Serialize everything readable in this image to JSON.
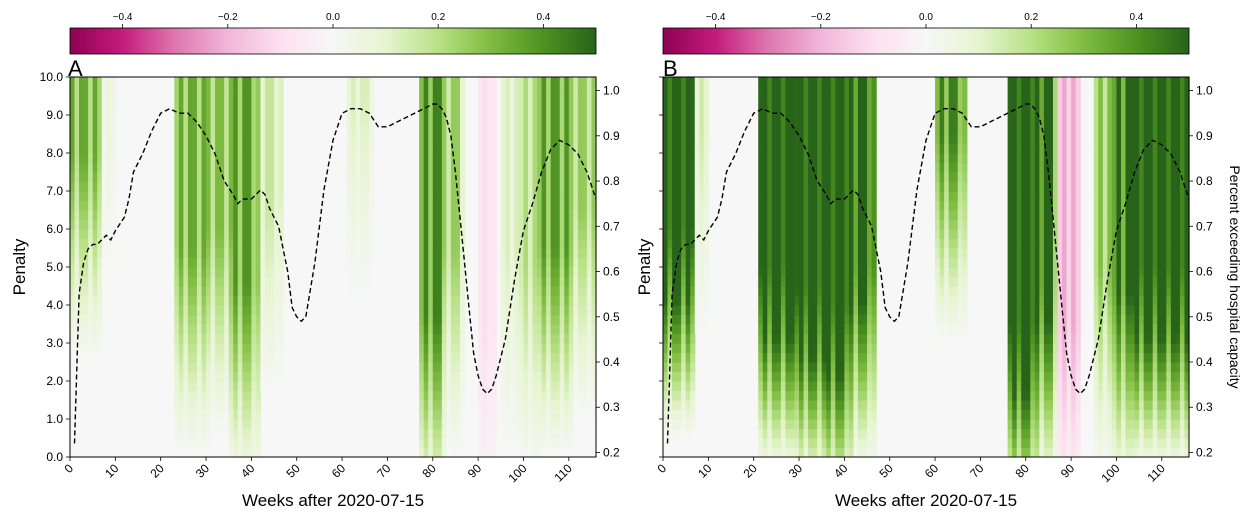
{
  "colormap": {
    "ticks": [
      -0.4,
      -0.2,
      0.0,
      0.2,
      0.4
    ],
    "tick_labels": [
      "−0.4",
      "−0.2",
      "0.0",
      "0.2",
      "0.4"
    ],
    "range": [
      -0.5,
      0.5
    ],
    "stops": [
      "#8e0152",
      "#c51b7d",
      "#de77ae",
      "#f1b6da",
      "#fde0ef",
      "#f7f7f7",
      "#e6f5d0",
      "#b8e186",
      "#7fbc41",
      "#4d9221",
      "#276419"
    ]
  },
  "chart_data": [
    {
      "panel_label": "A",
      "type": "heatmap",
      "xlabel": "Weeks after 2020-07-15",
      "ylabel": "Penalty",
      "ylabel_right": "",
      "xlim": [
        0,
        116
      ],
      "ylim": [
        0,
        10
      ],
      "ylim_right": [
        0.19,
        1.03
      ],
      "x_ticks": [
        0,
        10,
        20,
        30,
        40,
        50,
        60,
        70,
        80,
        90,
        100,
        110
      ],
      "y_ticks": [
        "0.0",
        "1.0",
        "2.0",
        "3.0",
        "4.0",
        "5.0",
        "6.0",
        "7.0",
        "8.0",
        "9.0",
        "10.0"
      ],
      "y_right_ticks": [
        "0.2",
        "0.3",
        "0.4",
        "0.5",
        "0.6",
        "0.7",
        "0.8",
        "0.9",
        "1.0"
      ],
      "intensity_scale": 1.0,
      "heatmap_bands": [
        {
          "x": [
            0,
            6
          ],
          "peak": 0.4,
          "floor_penalty": 5.5
        },
        {
          "x": [
            6,
            9
          ],
          "peak": 0.08,
          "floor_penalty": 7.0
        },
        {
          "x": [
            24,
            30
          ],
          "peak": 0.4,
          "floor_penalty": 3.0
        },
        {
          "x": [
            30,
            36
          ],
          "peak": 0.35,
          "floor_penalty": 3.5
        },
        {
          "x": [
            36,
            41
          ],
          "peak": 0.45,
          "floor_penalty": 2.0
        },
        {
          "x": [
            41,
            46
          ],
          "peak": 0.2,
          "floor_penalty": 4.5
        },
        {
          "x": [
            62,
            66
          ],
          "peak": 0.15,
          "floor_penalty": 7.0
        },
        {
          "x": [
            78,
            82
          ],
          "peak": 0.5,
          "floor_penalty": 1.2
        },
        {
          "x": [
            82,
            86
          ],
          "peak": 0.3,
          "floor_penalty": 3.0
        },
        {
          "x": [
            91,
            93
          ],
          "peak": -0.12,
          "floor_penalty": 1.0
        },
        {
          "x": [
            96,
            100
          ],
          "peak": 0.15,
          "floor_penalty": 3.0
        },
        {
          "x": [
            100,
            104
          ],
          "peak": 0.25,
          "floor_penalty": 2.5
        },
        {
          "x": [
            104,
            110
          ],
          "peak": 0.45,
          "floor_penalty": 3.0
        },
        {
          "x": [
            110,
            116
          ],
          "peak": 0.3,
          "floor_penalty": 4.0
        }
      ],
      "line": {
        "x": [
          1,
          2,
          3,
          4,
          5,
          6,
          7,
          8,
          9,
          10,
          12,
          13,
          14,
          16,
          18,
          20,
          22,
          24,
          26,
          28,
          30,
          31,
          32,
          34,
          36,
          37,
          38,
          40,
          42,
          43,
          44,
          46,
          48,
          49,
          50,
          51,
          52,
          54,
          56,
          58,
          60,
          62,
          64,
          66,
          68,
          70,
          72,
          74,
          76,
          78,
          80,
          81,
          82,
          83,
          84,
          85,
          86,
          87,
          88,
          89,
          90,
          91,
          92,
          93,
          94,
          96,
          98,
          100,
          102,
          104,
          106,
          108,
          110,
          112,
          114,
          116
        ],
        "y": [
          0.22,
          0.55,
          0.62,
          0.65,
          0.66,
          0.66,
          0.67,
          0.68,
          0.67,
          0.69,
          0.72,
          0.76,
          0.82,
          0.86,
          0.91,
          0.95,
          0.96,
          0.95,
          0.95,
          0.93,
          0.9,
          0.88,
          0.86,
          0.8,
          0.77,
          0.75,
          0.76,
          0.76,
          0.78,
          0.77,
          0.74,
          0.7,
          0.6,
          0.52,
          0.5,
          0.49,
          0.5,
          0.62,
          0.78,
          0.89,
          0.95,
          0.96,
          0.96,
          0.95,
          0.92,
          0.92,
          0.93,
          0.94,
          0.95,
          0.96,
          0.97,
          0.97,
          0.96,
          0.94,
          0.9,
          0.82,
          0.72,
          0.62,
          0.52,
          0.42,
          0.37,
          0.34,
          0.33,
          0.34,
          0.37,
          0.45,
          0.58,
          0.69,
          0.75,
          0.82,
          0.87,
          0.89,
          0.88,
          0.86,
          0.82,
          0.76
        ]
      }
    },
    {
      "panel_label": "B",
      "type": "heatmap",
      "xlabel": "Weeks after 2020-07-15",
      "ylabel": "Penalty",
      "ylabel_right": "Percent exceeding hospital capacity",
      "xlim": [
        0,
        116
      ],
      "ylim": [
        0,
        10
      ],
      "ylim_right": [
        0.19,
        1.03
      ],
      "x_ticks": [
        0,
        10,
        20,
        30,
        40,
        50,
        60,
        70,
        80,
        90,
        100,
        110
      ],
      "y_ticks": [],
      "y_right_ticks": [
        "0.2",
        "0.3",
        "0.4",
        "0.5",
        "0.6",
        "0.7",
        "0.8",
        "0.9",
        "1.0"
      ],
      "intensity_scale": 1.7,
      "heatmap_bands": [
        {
          "x": [
            0,
            6
          ],
          "peak": 0.5,
          "floor_penalty": 3.5
        },
        {
          "x": [
            6,
            9
          ],
          "peak": 0.1,
          "floor_penalty": 6.0
        },
        {
          "x": [
            22,
            30
          ],
          "peak": 0.5,
          "floor_penalty": 2.5
        },
        {
          "x": [
            30,
            36
          ],
          "peak": 0.5,
          "floor_penalty": 2.0
        },
        {
          "x": [
            36,
            41
          ],
          "peak": 0.5,
          "floor_penalty": 1.5
        },
        {
          "x": [
            41,
            46
          ],
          "peak": 0.4,
          "floor_penalty": 2.5
        },
        {
          "x": [
            61,
            66
          ],
          "peak": 0.3,
          "floor_penalty": 6.0
        },
        {
          "x": [
            77,
            82
          ],
          "peak": 0.5,
          "floor_penalty": 1.0
        },
        {
          "x": [
            82,
            86
          ],
          "peak": 0.4,
          "floor_penalty": 2.0
        },
        {
          "x": [
            88,
            91
          ],
          "peak": -0.15,
          "floor_penalty": 1.0
        },
        {
          "x": [
            96,
            100
          ],
          "peak": 0.2,
          "floor_penalty": 2.5
        },
        {
          "x": [
            100,
            104
          ],
          "peak": 0.35,
          "floor_penalty": 2.0
        },
        {
          "x": [
            104,
            116
          ],
          "peak": 0.5,
          "floor_penalty": 2.5
        }
      ],
      "line": {
        "x": [
          1,
          2,
          3,
          4,
          5,
          6,
          7,
          8,
          9,
          10,
          12,
          13,
          14,
          16,
          18,
          20,
          22,
          24,
          26,
          28,
          30,
          31,
          32,
          34,
          36,
          37,
          38,
          40,
          42,
          43,
          44,
          46,
          48,
          49,
          50,
          51,
          52,
          54,
          56,
          58,
          60,
          62,
          64,
          66,
          68,
          70,
          72,
          74,
          76,
          78,
          80,
          81,
          82,
          83,
          84,
          85,
          86,
          87,
          88,
          89,
          90,
          91,
          92,
          93,
          94,
          96,
          98,
          100,
          102,
          104,
          106,
          108,
          110,
          112,
          114,
          116
        ],
        "y": [
          0.22,
          0.55,
          0.62,
          0.65,
          0.66,
          0.66,
          0.67,
          0.68,
          0.67,
          0.69,
          0.72,
          0.76,
          0.82,
          0.86,
          0.91,
          0.95,
          0.96,
          0.95,
          0.95,
          0.93,
          0.9,
          0.88,
          0.86,
          0.8,
          0.77,
          0.75,
          0.76,
          0.76,
          0.78,
          0.77,
          0.74,
          0.7,
          0.6,
          0.52,
          0.5,
          0.49,
          0.5,
          0.62,
          0.78,
          0.89,
          0.95,
          0.96,
          0.96,
          0.95,
          0.92,
          0.92,
          0.93,
          0.94,
          0.95,
          0.96,
          0.97,
          0.97,
          0.96,
          0.94,
          0.9,
          0.82,
          0.72,
          0.62,
          0.52,
          0.42,
          0.37,
          0.34,
          0.33,
          0.34,
          0.37,
          0.45,
          0.58,
          0.69,
          0.75,
          0.82,
          0.87,
          0.89,
          0.88,
          0.86,
          0.82,
          0.76
        ]
      }
    }
  ]
}
